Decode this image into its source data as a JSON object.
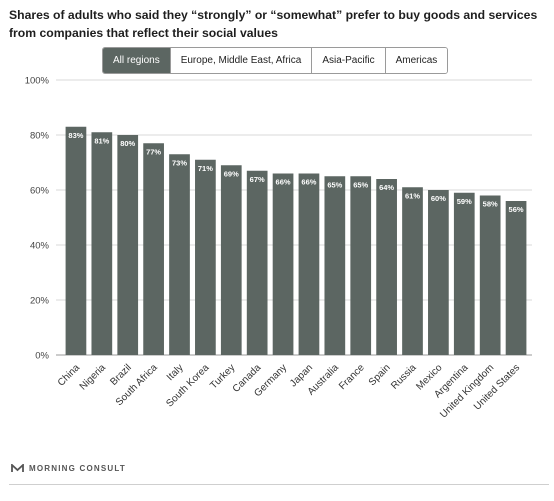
{
  "title": "Shares of adults who said they “strongly” or “somewhat” prefer to buy goods and services from companies that reflect their social values",
  "tabs": [
    {
      "label": "All regions",
      "active": true
    },
    {
      "label": "Europe, Middle East, Africa",
      "active": false
    },
    {
      "label": "Asia-Pacific",
      "active": false
    },
    {
      "label": "Americas",
      "active": false
    }
  ],
  "brand": {
    "name": "MORNING CONSULT",
    "icon": "morning-consult-logo-icon"
  },
  "colors": {
    "bar": "#5c6662",
    "active_tab": "#5c6662",
    "grid": "#d9d9d9"
  },
  "chart_data": {
    "type": "bar",
    "categories": [
      "China",
      "Nigeria",
      "Brazil",
      "South Africa",
      "Italy",
      "South Korea",
      "Turkey",
      "Canada",
      "Germany",
      "Japan",
      "Australia",
      "France",
      "Spain",
      "Russia",
      "Mexico",
      "Argentina",
      "United Kingdom",
      "United States"
    ],
    "values": [
      83,
      81,
      80,
      77,
      73,
      71,
      69,
      67,
      66,
      66,
      65,
      65,
      64,
      61,
      60,
      59,
      58,
      56
    ],
    "value_labels": [
      "83%",
      "81%",
      "80%",
      "77%",
      "73%",
      "71%",
      "69%",
      "67%",
      "66%",
      "66%",
      "65%",
      "65%",
      "64%",
      "61%",
      "60%",
      "59%",
      "58%",
      "56%"
    ],
    "y_ticks": [
      0,
      20,
      40,
      60,
      80,
      100
    ],
    "y_tick_labels": [
      "0%",
      "20%",
      "40%",
      "60%",
      "80%",
      "100%"
    ],
    "ylim": [
      0,
      100
    ],
    "grid": true,
    "xlabel": "",
    "ylabel": ""
  }
}
